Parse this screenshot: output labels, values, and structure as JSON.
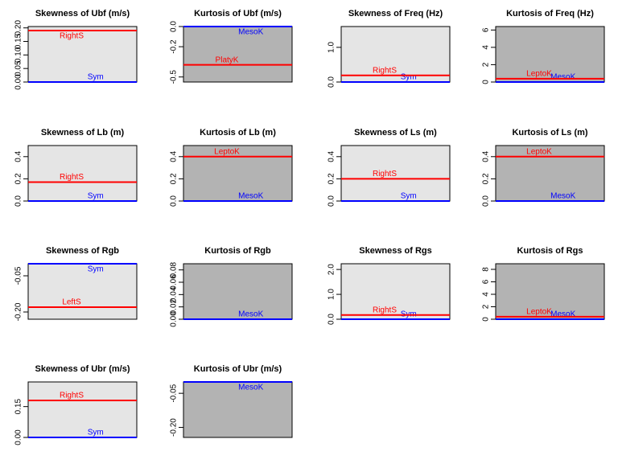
{
  "chart_data": [
    {
      "type": "hline",
      "title": "Skewness of Ubf (m/s)",
      "background": "#e5e5e5",
      "ylim": [
        0,
        0.205
      ],
      "yticks": [
        {
          "value": 0,
          "label": "0.00"
        },
        0.05,
        {
          "value": 0.1,
          "label": "0.10"
        },
        0.15,
        {
          "value": 0.2,
          "label": "0.20"
        }
      ],
      "series": [
        {
          "name": "Sym",
          "color": "#0000ff",
          "value": 0
        },
        {
          "name": "RightS",
          "color": "#ff0000",
          "value": 0.19
        }
      ]
    },
    {
      "type": "hline",
      "title": "Kurtosis of Ubf (m/s)",
      "background": "#b3b3b3",
      "ylim": [
        -0.55,
        0.0
      ],
      "yticks": [
        {
          "value": 0,
          "label": "0.0"
        },
        -0.2,
        -0.5
      ],
      "series": [
        {
          "name": "MesoK",
          "color": "#0000ff",
          "value": 0
        },
        {
          "name": "PlatyK",
          "color": "#ff0000",
          "value": -0.38
        }
      ]
    },
    {
      "type": "hline",
      "title": "Skewness of Freq (Hz)",
      "background": "#e5e5e5",
      "ylim": [
        0,
        1.6
      ],
      "yticks": [
        {
          "value": 0,
          "label": "0.0"
        },
        {
          "value": 1,
          "label": "1.0"
        }
      ],
      "series": [
        {
          "name": "Sym",
          "color": "#0000ff",
          "value": 0
        },
        {
          "name": "RightS",
          "color": "#ff0000",
          "value": 0.19
        }
      ]
    },
    {
      "type": "hline",
      "title": "Kurtosis of Freq (Hz)",
      "background": "#b3b3b3",
      "ylim": [
        0,
        6.4
      ],
      "yticks": [
        0,
        2,
        4,
        6
      ],
      "series": [
        {
          "name": "MesoK",
          "color": "#0000ff",
          "value": 0
        },
        {
          "name": "LeptoK",
          "color": "#ff0000",
          "value": 0.38
        }
      ]
    },
    {
      "type": "hline",
      "title": "Skewness of Lb (m)",
      "background": "#e5e5e5",
      "ylim": [
        0,
        0.5
      ],
      "yticks": [
        {
          "value": 0,
          "label": "0.0"
        },
        0.2,
        0.4
      ],
      "series": [
        {
          "name": "Sym",
          "color": "#0000ff",
          "value": 0
        },
        {
          "name": "RightS",
          "color": "#ff0000",
          "value": 0.17
        }
      ]
    },
    {
      "type": "hline",
      "title": "Kurtosis of Lb (m)",
      "background": "#b3b3b3",
      "ylim": [
        0,
        0.5
      ],
      "yticks": [
        {
          "value": 0,
          "label": "0.0"
        },
        0.2,
        0.4
      ],
      "series": [
        {
          "name": "MesoK",
          "color": "#0000ff",
          "value": 0
        },
        {
          "name": "LeptoK",
          "color": "#ff0000",
          "value": 0.4
        }
      ]
    },
    {
      "type": "hline",
      "title": "Skewness of Ls (m)",
      "background": "#e5e5e5",
      "ylim": [
        0,
        0.5
      ],
      "yticks": [
        {
          "value": 0,
          "label": "0.0"
        },
        0.2,
        0.4
      ],
      "series": [
        {
          "name": "Sym",
          "color": "#0000ff",
          "value": 0
        },
        {
          "name": "RightS",
          "color": "#ff0000",
          "value": 0.2
        }
      ]
    },
    {
      "type": "hline",
      "title": "Kurtosis of Ls (m)",
      "background": "#b3b3b3",
      "ylim": [
        0,
        0.5
      ],
      "yticks": [
        {
          "value": 0,
          "label": "0.0"
        },
        0.2,
        0.4
      ],
      "series": [
        {
          "name": "MesoK",
          "color": "#0000ff",
          "value": 0
        },
        {
          "name": "LeptoK",
          "color": "#ff0000",
          "value": 0.4
        }
      ]
    },
    {
      "type": "hline",
      "title": "Skewness of Rgb",
      "background": "#e5e5e5",
      "ylim": [
        -0.23,
        0.0
      ],
      "yticks": [
        -0.05,
        {
          "value": -0.2,
          "label": "-0.20"
        }
      ],
      "series": [
        {
          "name": "Sym",
          "color": "#0000ff",
          "value": 0
        },
        {
          "name": "LeftS",
          "color": "#ff0000",
          "value": -0.18
        }
      ]
    },
    {
      "type": "hline",
      "title": "Kurtosis of Rgb",
      "background": "#b3b3b3",
      "ylim": [
        0,
        0.09
      ],
      "yticks": [
        {
          "value": 0,
          "label": "0.00"
        },
        0.02,
        0.04,
        0.06,
        0.08
      ],
      "series": [
        {
          "name": "MesoK",
          "color": "#0000ff",
          "value": 0
        }
      ]
    },
    {
      "type": "hline",
      "title": "Skewness of Rgs",
      "background": "#e5e5e5",
      "ylim": [
        0,
        2.23
      ],
      "yticks": [
        {
          "value": 0,
          "label": "0.0"
        },
        {
          "value": 1,
          "label": "1.0"
        },
        {
          "value": 2,
          "label": "2.0"
        }
      ],
      "series": [
        {
          "name": "Sym",
          "color": "#0000ff",
          "value": 0
        },
        {
          "name": "RightS",
          "color": "#ff0000",
          "value": 0.17
        }
      ]
    },
    {
      "type": "hline",
      "title": "Kurtosis of Rgs",
      "background": "#b3b3b3",
      "ylim": [
        0,
        8.9
      ],
      "yticks": [
        0,
        2,
        4,
        6,
        8
      ],
      "series": [
        {
          "name": "MesoK",
          "color": "#0000ff",
          "value": 0
        },
        {
          "name": "LeptoK",
          "color": "#ff0000",
          "value": 0.4
        }
      ]
    },
    {
      "type": "hline",
      "title": "Skewness of Ubr (m/s)",
      "background": "#e5e5e5",
      "ylim": [
        0,
        0.27
      ],
      "yticks": [
        {
          "value": 0,
          "label": "0.00"
        },
        0.15
      ],
      "series": [
        {
          "name": "Sym",
          "color": "#0000ff",
          "value": 0
        },
        {
          "name": "RightS",
          "color": "#ff0000",
          "value": 0.18
        }
      ]
    },
    {
      "type": "hline",
      "title": "Kurtosis of Ubr (m/s)",
      "background": "#b3b3b3",
      "ylim": [
        -0.244,
        0.0
      ],
      "yticks": [
        -0.05,
        {
          "value": -0.2,
          "label": "-0.20"
        }
      ],
      "series": [
        {
          "name": "MesoK",
          "color": "#0000ff",
          "value": 0
        }
      ]
    }
  ]
}
